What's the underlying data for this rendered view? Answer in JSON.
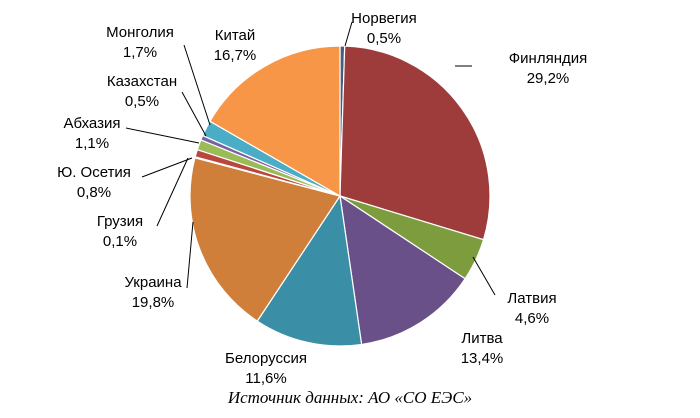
{
  "chart_data": {
    "type": "pie",
    "slices": [
      {
        "name": "Норвегия",
        "value_label": "0,5%",
        "value": 0.5,
        "color": "#4a5c7e"
      },
      {
        "name": "Финляндия",
        "value_label": "29,2%",
        "value": 29.2,
        "color": "#9e3c3c"
      },
      {
        "name": "Латвия",
        "value_label": "4,6%",
        "value": 4.6,
        "color": "#7d9c3e"
      },
      {
        "name": "Литва",
        "value_label": "13,4%",
        "value": 13.4,
        "color": "#6a5088"
      },
      {
        "name": "Белоруссия",
        "value_label": "11,6%",
        "value": 11.6,
        "color": "#3a8ea5"
      },
      {
        "name": "Украина",
        "value_label": "19,8%",
        "value": 19.8,
        "color": "#cf7f3a"
      },
      {
        "name": "Грузия",
        "value_label": "0,1%",
        "value": 0.1,
        "color": "#3b4f6d"
      },
      {
        "name": "Ю. Осетия",
        "value_label": "0,8%",
        "value": 0.8,
        "color": "#b8473e"
      },
      {
        "name": "Абхазия",
        "value_label": "1,1%",
        "value": 1.1,
        "color": "#9bbb59"
      },
      {
        "name": "Казахстан",
        "value_label": "0,5%",
        "value": 0.5,
        "color": "#7a62a0"
      },
      {
        "name": "Монголия",
        "value_label": "1,7%",
        "value": 1.7,
        "color": "#4bacc6"
      },
      {
        "name": "Китай",
        "value_label": "16,7%",
        "value": 16.7,
        "color": "#f79646"
      }
    ]
  },
  "source_text": "Источник данных: АО «СО ЕЭС»"
}
